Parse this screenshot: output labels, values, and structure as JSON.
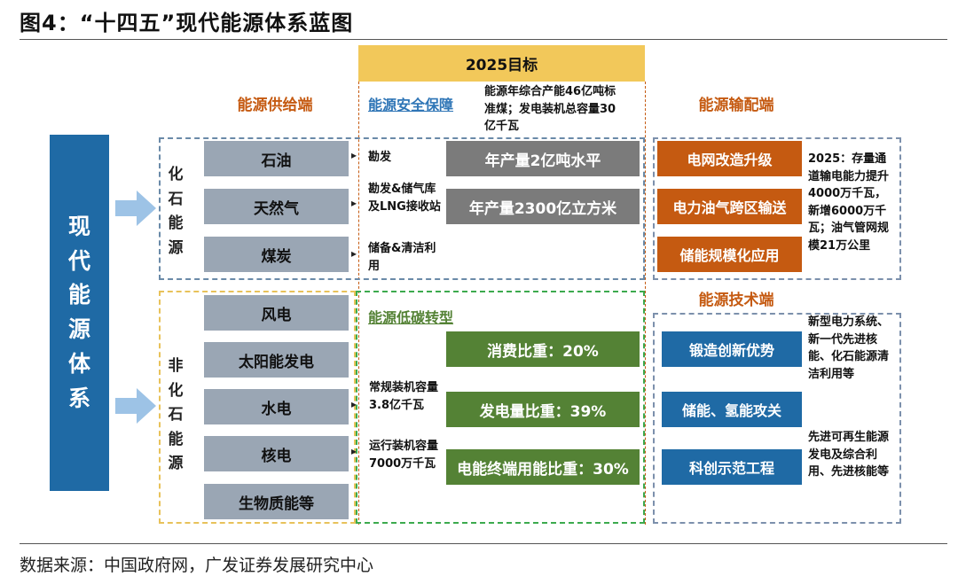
{
  "title": "图4：“十四五”现代能源体系蓝图",
  "footer": "数据来源：中国政府网，广发证券发展研究中心",
  "goal_bar": "2025目标",
  "headers": {
    "supply": "能源供给端",
    "transport": "能源输配端",
    "tech": "能源技术端"
  },
  "left_column": [
    "现",
    "代",
    "能",
    "源",
    "体",
    "系"
  ],
  "fossil": {
    "label": [
      "化",
      "石",
      "能",
      "源"
    ],
    "items": [
      "石油",
      "天然气",
      "煤炭"
    ],
    "notes": [
      "勘发",
      "勘发&储气库及LNG接收站",
      "储备&清洁利用"
    ]
  },
  "security": {
    "title": "能源安全保障",
    "note": "能源年综合产能46亿吨标准煤；发电装机总容量30亿千瓦",
    "targets": [
      "年产量2亿吨水平",
      "年产量2300亿立方米"
    ]
  },
  "nonfossil": {
    "label": [
      "非",
      "化",
      "石",
      "能",
      "源"
    ],
    "items": [
      "风电",
      "太阳能发电",
      "水电",
      "核电",
      "生物质能等"
    ],
    "notes": [
      "常规装机容量3.8亿千瓦",
      "运行装机容量7000万千瓦"
    ]
  },
  "lowcarbon": {
    "title": "能源低碳转型",
    "targets": [
      "消费比重：20%",
      "发电量比重：39%",
      "电能终端用能比重：30%"
    ]
  },
  "transport": {
    "items": [
      "电网改造升级",
      "电力油气跨区输送",
      "储能规模化应用"
    ],
    "note": "2025：存量通道输电能力提升4000万千瓦，新增6000万千瓦；油气管网规模21万公里"
  },
  "tech": {
    "items": [
      "锻造创新优势",
      "储能、氢能攻关",
      "科创示范工程"
    ],
    "notes": [
      "新型电力系统、新一代先进核能、化石能源清洁利用等",
      "先进可再生能源发电及综合利用、先进核能等"
    ]
  },
  "colors": {
    "navy": "#1f6aa5",
    "orange": "#c55a11",
    "gold": "#f2c85a",
    "green": "#548235",
    "gray": "#9aa6b4",
    "dark_gray": "#7b7b7b"
  }
}
